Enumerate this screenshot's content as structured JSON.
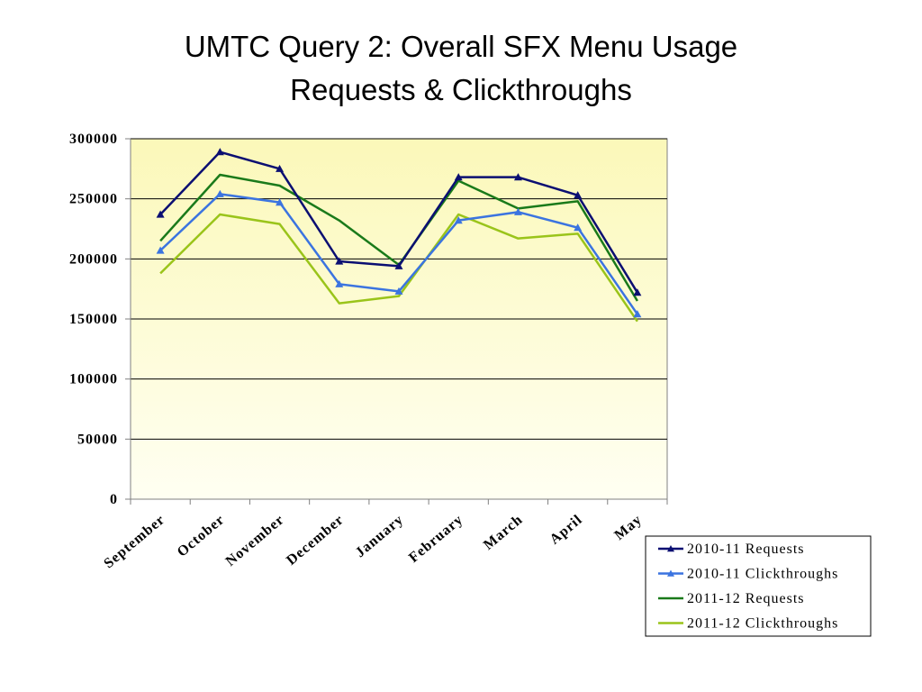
{
  "chart_data": {
    "type": "line",
    "title": "UMTC Query 2: Overall SFX Menu Usage",
    "subtitle": "Requests & Clickthroughs",
    "xlabel": "",
    "ylabel": "",
    "categories": [
      "September",
      "October",
      "November",
      "December",
      "January",
      "February",
      "March",
      "April",
      "May"
    ],
    "ylim": [
      0,
      300000
    ],
    "yticks": [
      0,
      50000,
      100000,
      150000,
      200000,
      250000,
      300000
    ],
    "ytick_labels": [
      "0",
      "50000",
      "100000",
      "150000",
      "200000",
      "250000",
      "300000"
    ],
    "grid": true,
    "legend_position": "bottom-right",
    "plot_background": [
      "#fbf8b9",
      "#fffff2"
    ],
    "series": [
      {
        "name": "2010-11 Requests",
        "color": "#0b0f72",
        "marker": "triangle",
        "values": [
          237000,
          289000,
          275000,
          198000,
          194000,
          268000,
          268000,
          253000,
          172000
        ]
      },
      {
        "name": "2010-11 Clickthroughs",
        "color": "#3b74e0",
        "marker": "triangle",
        "values": [
          207000,
          254000,
          247000,
          179000,
          173000,
          232000,
          239000,
          226000,
          154000
        ]
      },
      {
        "name": "2011-12 Requests",
        "color": "#1a7a1a",
        "marker": "none",
        "values": [
          215000,
          270000,
          261000,
          232000,
          195000,
          265000,
          242000,
          248000,
          165000
        ]
      },
      {
        "name": "2011-12 Clickthroughs",
        "color": "#9ac41a",
        "marker": "none",
        "values": [
          188000,
          237000,
          229000,
          163000,
          169000,
          237000,
          217000,
          221000,
          148000
        ]
      }
    ]
  }
}
